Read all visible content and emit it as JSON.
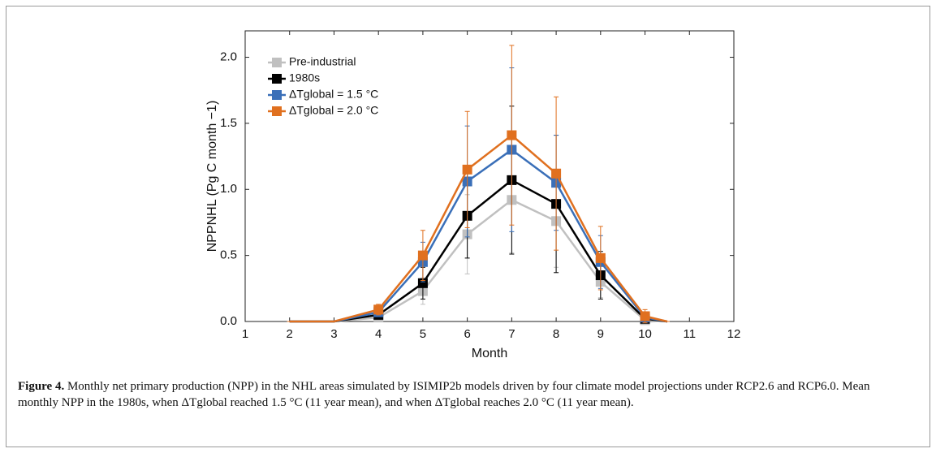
{
  "chart_data": {
    "type": "line",
    "ylabel": "NPPNHL (Pg C month −1)",
    "xlabel": "Month",
    "x": [
      2,
      3,
      4,
      5,
      6,
      7,
      8,
      9,
      10,
      10.5
    ],
    "xlim": [
      1,
      12
    ],
    "xticks": [
      1,
      2,
      3,
      4,
      5,
      6,
      7,
      8,
      9,
      10,
      11,
      12
    ],
    "ylim": [
      0,
      2.2
    ],
    "yticks": [
      {
        "value": 0,
        "label": "0.0"
      },
      0.5,
      {
        "value": 1,
        "label": "1.0"
      },
      1.5,
      {
        "value": 2,
        "label": "2.0"
      }
    ],
    "legend": "upper left",
    "series": [
      {
        "name": "Pre-industrial",
        "color": "#c0c0c0",
        "values": [
          0,
          0,
          0.03,
          0.23,
          0.66,
          0.92,
          0.76,
          0.3,
          0.01,
          0
        ],
        "errors": [
          0,
          0,
          0.02,
          0.1,
          0.3,
          0.4,
          0.35,
          0.12,
          0.01,
          0
        ]
      },
      {
        "name": "1980s",
        "color": "#000000",
        "values": [
          0,
          0,
          0.05,
          0.29,
          0.8,
          1.07,
          0.89,
          0.35,
          0.02,
          0
        ],
        "errors": [
          0,
          0,
          0.03,
          0.12,
          0.32,
          0.56,
          0.52,
          0.18,
          0.02,
          0
        ]
      },
      {
        "name": "ΔTglobal = 1.5 °C",
        "color": "#3a6fb8",
        "values": [
          0,
          0,
          0.07,
          0.45,
          1.06,
          1.3,
          1.05,
          0.45,
          0.03,
          0
        ],
        "errors": [
          0,
          0,
          0.03,
          0.15,
          0.42,
          0.62,
          0.36,
          0.2,
          0.03,
          0
        ]
      },
      {
        "name": "ΔTglobal = 2.0 °C",
        "color": "#e0701f",
        "values": [
          0,
          0,
          0.09,
          0.5,
          1.15,
          1.41,
          1.12,
          0.48,
          0.04,
          0
        ],
        "errors": [
          0,
          0,
          0.04,
          0.19,
          0.44,
          0.68,
          0.58,
          0.24,
          0.05,
          0
        ]
      }
    ]
  },
  "caption": {
    "label": "Figure 4.",
    "text": "Monthly net primary production (NPP) in the NHL areas simulated by ISIMIP2b models driven by four climate model projections under RCP2.6 and RCP6.0. Mean monthly NPP in the 1980s, when ΔTglobal reached 1.5 °C (11 year mean), and when ΔTglobal reaches 2.0 °C (11 year mean)."
  }
}
